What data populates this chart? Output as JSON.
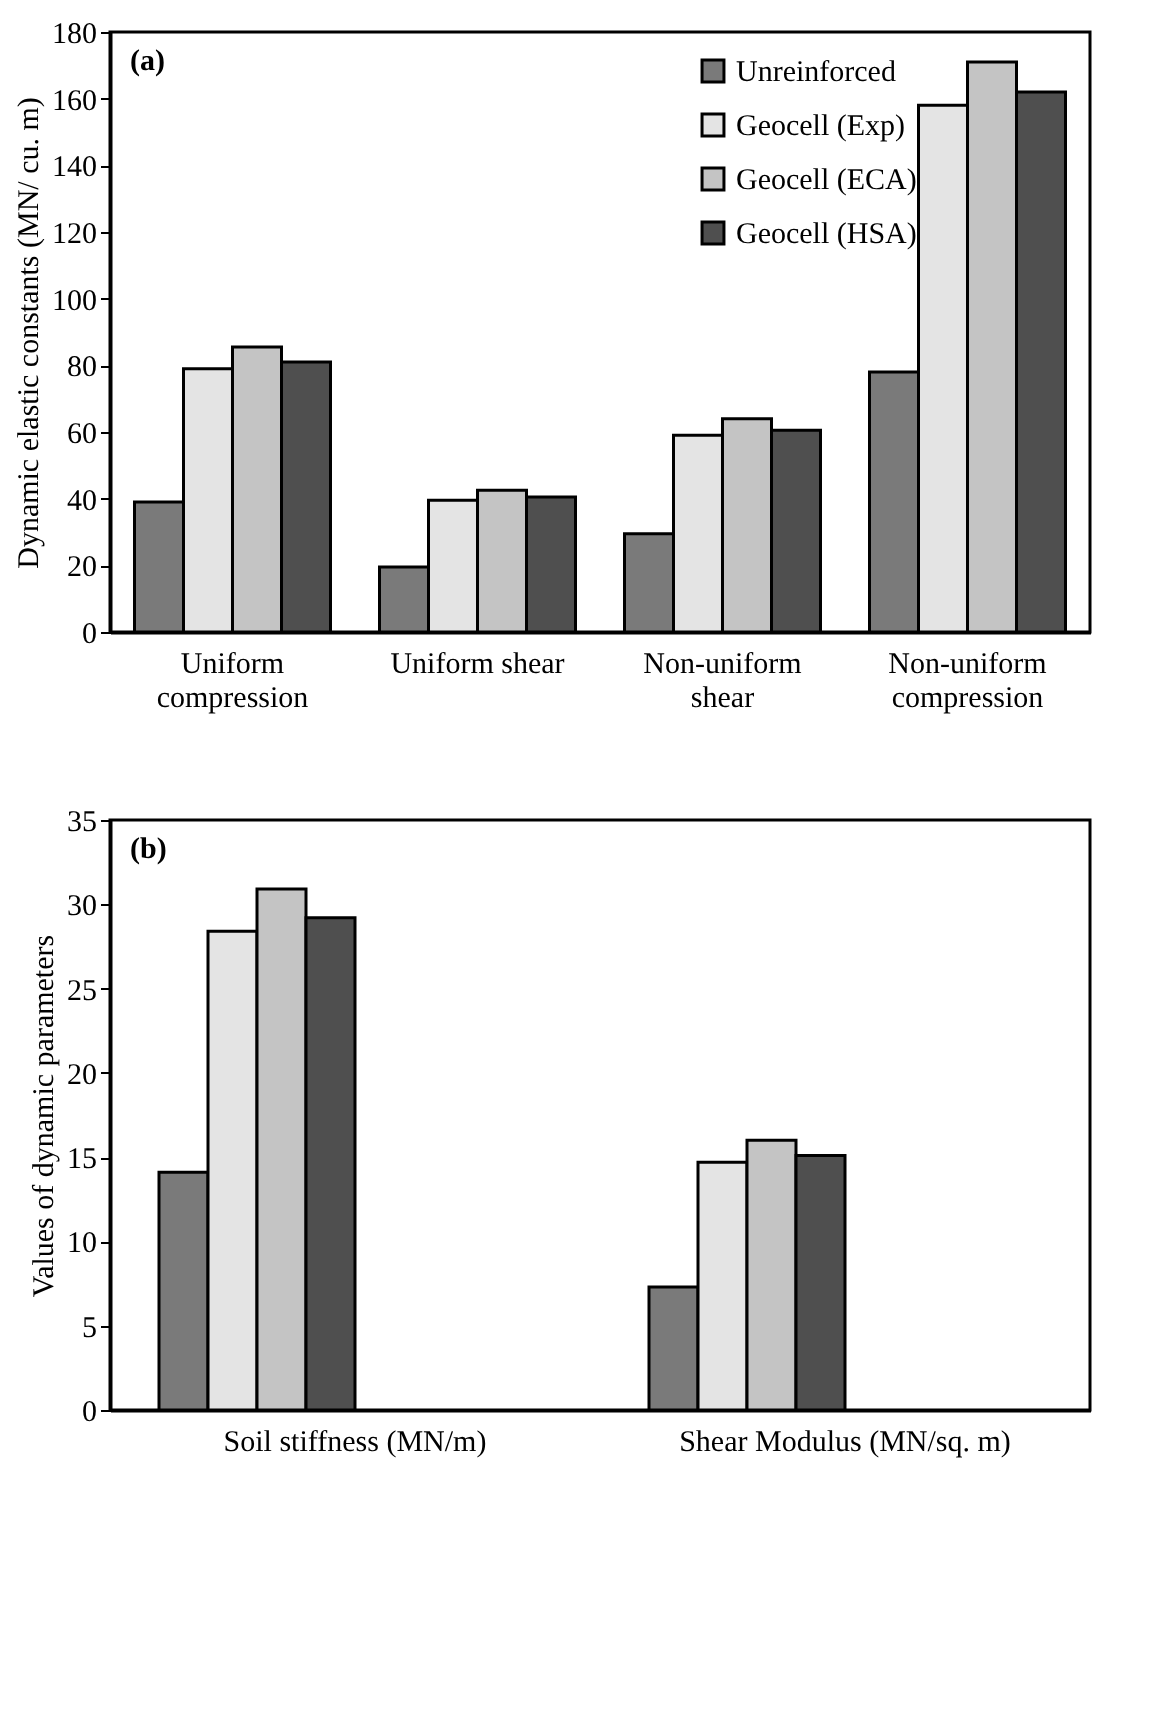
{
  "chart_data": [
    {
      "type": "bar",
      "title": "(a)",
      "ylabel": "Dynamic elastic constants (MN/ cu. m)",
      "categories": [
        "Uniform compression",
        "Uniform shear",
        "Non-uniform shear",
        "Non-uniform compression"
      ],
      "ylim": [
        0,
        180
      ],
      "yticks": [
        0,
        20,
        40,
        60,
        80,
        100,
        120,
        140,
        160,
        180
      ],
      "legend": "top right",
      "grid": false,
      "series": [
        {
          "name": "Unreinforced",
          "color": "#7a7a7a",
          "values": [
            39,
            19.5,
            29.5,
            78
          ]
        },
        {
          "name": "Geocell (Exp)",
          "color": "#e4e4e4",
          "values": [
            79,
            39.5,
            59,
            158
          ]
        },
        {
          "name": "Geocell (ECA)",
          "color": "#c4c4c4",
          "values": [
            85.5,
            42.5,
            64,
            171
          ]
        },
        {
          "name": "Geocell (HSA)",
          "color": "#4f4f4f",
          "values": [
            81,
            40.5,
            60.5,
            162
          ]
        }
      ]
    },
    {
      "type": "bar",
      "title": "(b)",
      "ylabel": "Values of dynamic parameters",
      "categories": [
        "Soil stiffness (MN/m)",
        "Shear Modulus (MN/sq. m)"
      ],
      "ylim": [
        0,
        35
      ],
      "yticks": [
        0,
        5,
        10,
        15,
        20,
        25,
        30,
        35
      ],
      "legend": "top right",
      "grid": false,
      "series": [
        {
          "name": "Unreinforced",
          "color": "#7a7a7a",
          "values": [
            14.1,
            7.3
          ]
        },
        {
          "name": "Geocell (Exp)",
          "color": "#e4e4e4",
          "values": [
            28.4,
            14.7
          ]
        },
        {
          "name": "Geocell (ECA)",
          "color": "#c4c4c4",
          "values": [
            30.9,
            16
          ]
        },
        {
          "name": "Geocell (HSA)",
          "color": "#4f4f4f",
          "values": [
            29.2,
            15.1
          ]
        }
      ]
    }
  ]
}
